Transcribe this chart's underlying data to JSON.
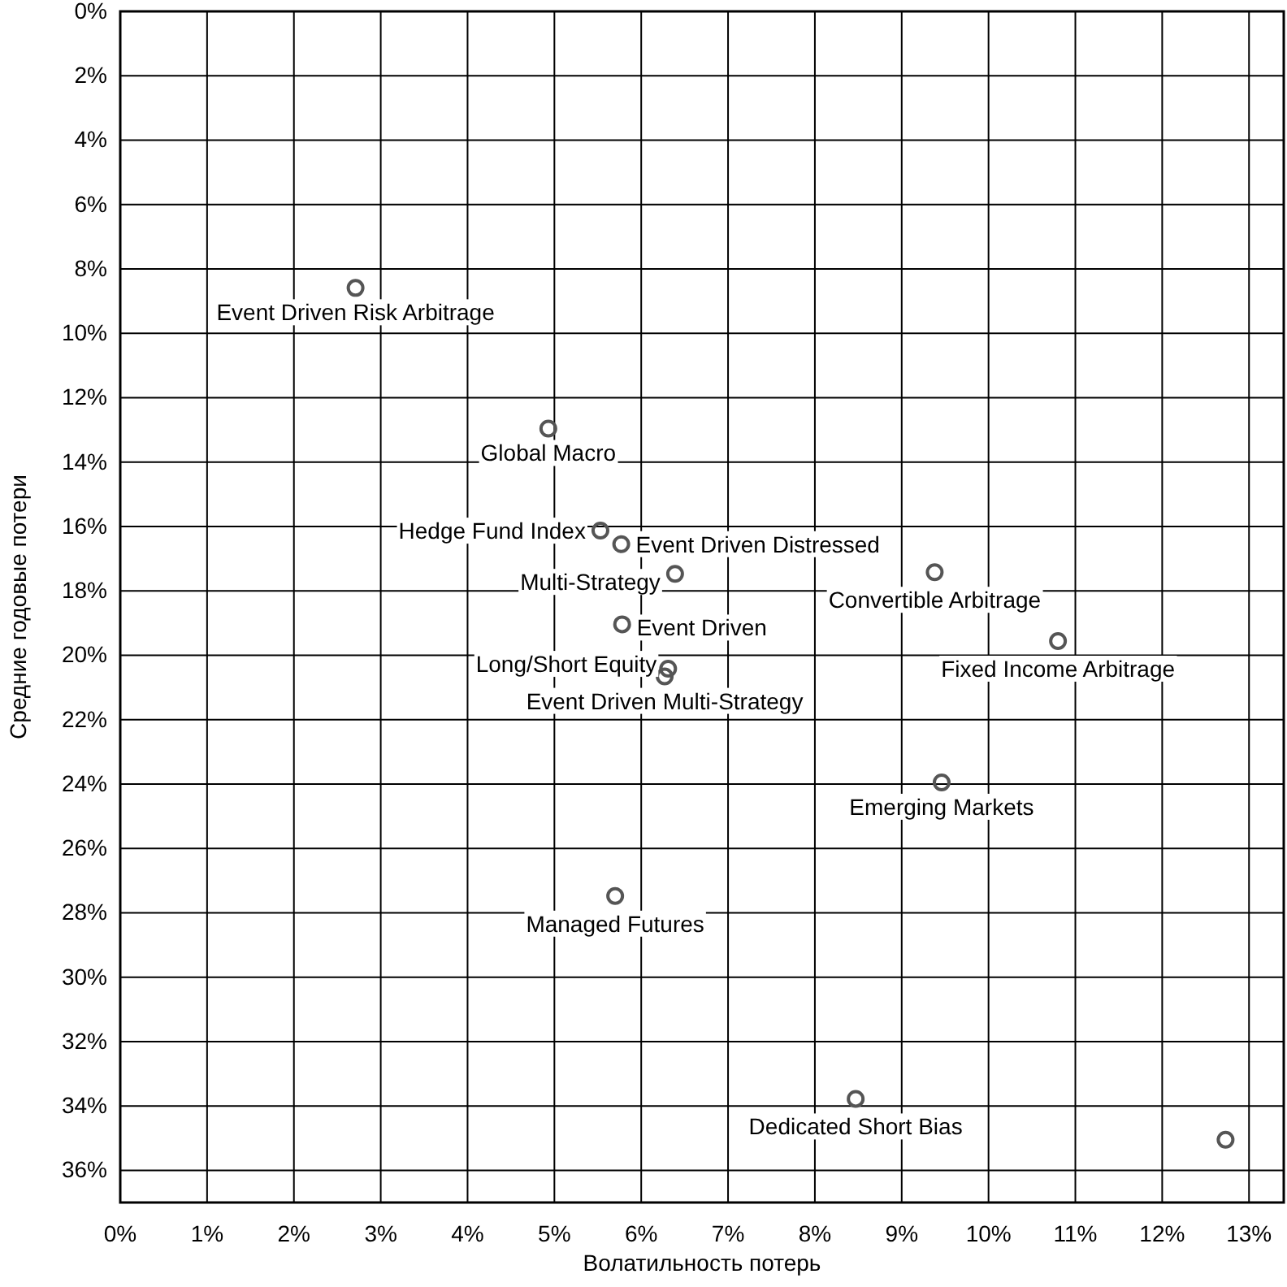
{
  "chart_data": {
    "type": "scatter",
    "xlabel": "Волатильность потерь",
    "ylabel": "Средние годовые потери",
    "x": [
      2.71,
      4.93,
      5.53,
      5.77,
      6.39,
      9.38,
      5.78,
      6.31,
      6.27,
      10.8,
      9.46,
      5.7,
      8.47,
      12.73
    ],
    "values": [
      8.59,
      12.96,
      16.13,
      16.55,
      17.47,
      17.42,
      19.04,
      20.42,
      20.66,
      19.56,
      23.95,
      27.48,
      33.78,
      35.05
    ],
    "color": "#555555",
    "marker": "circle",
    "grid": true,
    "xlim": [
      0,
      13.4
    ],
    "xticks": [
      {
        "value": 0,
        "label": "0%"
      },
      {
        "value": 1,
        "label": "1%"
      },
      {
        "value": 2,
        "label": "2%"
      },
      {
        "value": 3,
        "label": "3%"
      },
      {
        "value": 4,
        "label": "4%"
      },
      {
        "value": 5,
        "label": "5%"
      },
      {
        "value": 6,
        "label": "6%"
      },
      {
        "value": 7,
        "label": "7%"
      },
      {
        "value": 8,
        "label": "8%"
      },
      {
        "value": 9,
        "label": "9%"
      },
      {
        "value": 10,
        "label": "10%"
      },
      {
        "value": 11,
        "label": "11%"
      },
      {
        "value": 12,
        "label": "12%"
      },
      {
        "value": 13,
        "label": "13%"
      }
    ],
    "ylim": [
      37,
      0
    ],
    "yticks": [
      {
        "value": 0,
        "label": "0%"
      },
      {
        "value": 2,
        "label": "2%"
      },
      {
        "value": 4,
        "label": "4%"
      },
      {
        "value": 6,
        "label": "6%"
      },
      {
        "value": 8,
        "label": "8%"
      },
      {
        "value": 10,
        "label": "10%"
      },
      {
        "value": 12,
        "label": "12%"
      },
      {
        "value": 14,
        "label": "14%"
      },
      {
        "value": 16,
        "label": "16%"
      },
      {
        "value": 18,
        "label": "18%"
      },
      {
        "value": 20,
        "label": "20%"
      },
      {
        "value": 22,
        "label": "22%"
      },
      {
        "value": 24,
        "label": "24%"
      },
      {
        "value": 26,
        "label": "26%"
      },
      {
        "value": 28,
        "label": "28%"
      },
      {
        "value": 30,
        "label": "30%"
      },
      {
        "value": 32,
        "label": "32%"
      },
      {
        "value": 34,
        "label": "34%"
      },
      {
        "value": 36,
        "label": "36%"
      }
    ],
    "annotations": [
      {
        "text": "Event Driven Risk Arbitrage",
        "x": 2.71,
        "y": 8.59
      },
      {
        "text": "Global Macro",
        "x": 4.93,
        "y": 12.96
      },
      {
        "text": "Hedge Fund Index",
        "x": 5.53,
        "y": 16.13
      },
      {
        "text": "Event Driven Distressed",
        "x": 5.77,
        "y": 16.55
      },
      {
        "text": "Multi-Strategy",
        "x": 6.39,
        "y": 17.47
      },
      {
        "text": "Convertible Arbitrage",
        "x": 9.38,
        "y": 17.42
      },
      {
        "text": "Event Driven",
        "x": 5.78,
        "y": 19.04
      },
      {
        "text": "Long/Short Equity",
        "x": 6.31,
        "y": 20.42
      },
      {
        "text": "Event Driven Multi-Strategy",
        "x": 6.27,
        "y": 20.66
      },
      {
        "text": "Fixed Income Arbitrage",
        "x": 10.8,
        "y": 19.56
      },
      {
        "text": "Emerging Markets",
        "x": 9.46,
        "y": 23.95
      },
      {
        "text": "Managed Futures",
        "x": 5.7,
        "y": 27.48
      },
      {
        "text": "Dedicated Short Bias",
        "x": 8.47,
        "y": 33.78
      }
    ]
  }
}
